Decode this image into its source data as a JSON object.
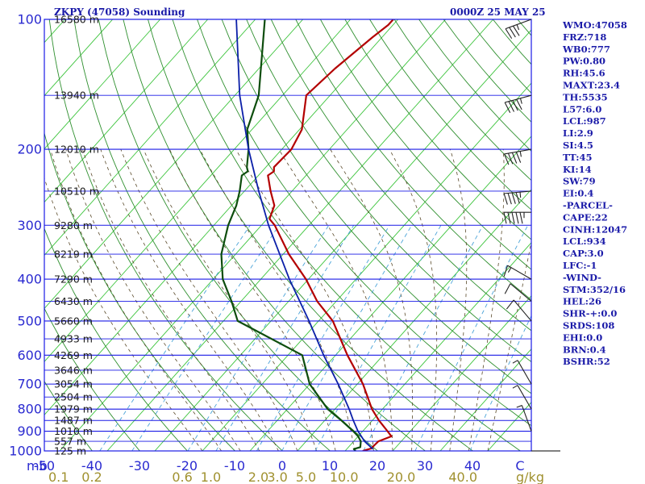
{
  "header": {
    "station_title": "ZKPY (47058) Sounding",
    "time_title": "0000Z 25 MAY 25"
  },
  "indices": [
    "WMO:47058",
    "FRZ:718",
    "WB0:777",
    "PW:0.80",
    "RH:45.6",
    "MAXT:23.4",
    "TH:5535",
    "L57:6.0",
    "LCL:987",
    "LI:2.9",
    "SI:4.5",
    "TT:45",
    "KI:14",
    "SW:79",
    "EI:0.4",
    "-PARCEL-",
    "CAPE:22",
    "CINH:12047",
    "LCL:934",
    "CAP:3.0",
    "LFC:-1",
    "-WIND-",
    "STM:352/16",
    "HEL:26",
    "SHR-+:0.0",
    "SRDS:108",
    "EHI:0.0",
    "BRN:0.4",
    "BSHR:52"
  ],
  "colors": {
    "isobar": "#1a1ae6",
    "frame": "#1a1ae6",
    "dry_adiabat": "#2e8f2e",
    "isotherm": "#3cc43c",
    "moist_adiabat": "#5a4a2a",
    "mixing_ratio": "#4aa3d8",
    "temperature": "#b30000",
    "dewpoint": "#0d4d0d",
    "parcel": "#0b1fa8",
    "wind_barb": "#222222"
  },
  "chart_data": {
    "type": "line",
    "title": "ZKPY (47058) Sounding",
    "y_unit": "mb",
    "y_scale": "log-pressure",
    "ylim": [
      1000,
      100
    ],
    "xlim_c": [
      -50,
      50
    ],
    "pressure_ticks": [
      {
        "value": 100,
        "label": "100"
      },
      {
        "value": 200,
        "label": "200"
      },
      {
        "value": 300,
        "label": "300"
      },
      {
        "value": 400,
        "label": "400"
      },
      {
        "value": 500,
        "label": "500"
      },
      {
        "value": 600,
        "label": "600"
      },
      {
        "value": 700,
        "label": "700"
      },
      {
        "value": 800,
        "label": "800"
      },
      {
        "value": 900,
        "label": "900"
      },
      {
        "value": 1000,
        "label": "1000"
      }
    ],
    "temperature_ticks": [
      {
        "value": -50,
        "label": "-50"
      },
      {
        "value": -40,
        "label": "-40"
      },
      {
        "value": -30,
        "label": "-30"
      },
      {
        "value": -20,
        "label": "-20"
      },
      {
        "value": -10,
        "label": "-10"
      },
      {
        "value": 0,
        "label": "0"
      },
      {
        "value": 10,
        "label": "10"
      },
      {
        "value": 20,
        "label": "20"
      },
      {
        "value": 30,
        "label": "30"
      },
      {
        "value": 40,
        "label": "40"
      },
      {
        "value": 50,
        "label": "C"
      }
    ],
    "axis_unit_left": "mb",
    "mixing_ratio_unit": "g/kg",
    "mixing_ratio_ticks": [
      {
        "value": 0.1,
        "label": "0.1"
      },
      {
        "value": 0.2,
        "label": "0.2"
      },
      {
        "value": 0.6,
        "label": "0.6"
      },
      {
        "value": 1.0,
        "label": "1.0"
      },
      {
        "value": 2.0,
        "label": "2.0"
      },
      {
        "value": 3.0,
        "label": "3.0"
      },
      {
        "value": 5.0,
        "label": "5.0"
      },
      {
        "value": 10.0,
        "label": "10.0"
      },
      {
        "value": 20.0,
        "label": "20.0"
      },
      {
        "value": 40.0,
        "label": "40.0"
      }
    ],
    "mixing_ratio_label_x_c": [
      -47,
      -40,
      -21,
      -15,
      -5,
      -1,
      5,
      13,
      25,
      38
    ],
    "height_labels": [
      {
        "p": 100,
        "label": "16580 m"
      },
      {
        "p": 150,
        "label": "13940 m"
      },
      {
        "p": 200,
        "label": "12010 m"
      },
      {
        "p": 250,
        "label": "10510 m"
      },
      {
        "p": 300,
        "label": "9280 m"
      },
      {
        "p": 350,
        "label": "8219 m"
      },
      {
        "p": 400,
        "label": "7290 m"
      },
      {
        "p": 450,
        "label": "6430 m"
      },
      {
        "p": 500,
        "label": "5660 m"
      },
      {
        "p": 550,
        "label": "4933 m"
      },
      {
        "p": 600,
        "label": "4269 m"
      },
      {
        "p": 650,
        "label": "3646 m"
      },
      {
        "p": 700,
        "label": "3054 m"
      },
      {
        "p": 750,
        "label": "2504 m"
      },
      {
        "p": 800,
        "label": "1979 m"
      },
      {
        "p": 850,
        "label": "1487 m"
      },
      {
        "p": 900,
        "label": "1010 m"
      },
      {
        "p": 950,
        "label": "557 m"
      },
      {
        "p": 1000,
        "label": "125 m"
      }
    ],
    "series": [
      {
        "role": "temperature",
        "points": [
          [
            1000,
            13.7
          ],
          [
            987,
            15
          ],
          [
            950,
            15.2
          ],
          [
            925,
            17
          ],
          [
            900,
            15.2
          ],
          [
            850,
            11.4
          ],
          [
            800,
            7.8
          ],
          [
            700,
            1.2
          ],
          [
            600,
            -7.5
          ],
          [
            500,
            -17
          ],
          [
            450,
            -24
          ],
          [
            400,
            -30.5
          ],
          [
            350,
            -38.8
          ],
          [
            300,
            -47.2
          ],
          [
            290,
            -49.5
          ],
          [
            270,
            -51
          ],
          [
            250,
            -54.5
          ],
          [
            230,
            -58
          ],
          [
            225,
            -57.5
          ],
          [
            220,
            -58.3
          ],
          [
            200,
            -58
          ],
          [
            180,
            -59.5
          ],
          [
            150,
            -65
          ],
          [
            130,
            -64
          ],
          [
            110,
            -62
          ],
          [
            103,
            -61
          ],
          [
            100,
            -61
          ]
        ]
      },
      {
        "role": "dewpoint",
        "points": [
          [
            1000,
            12.2
          ],
          [
            990,
            11.5
          ],
          [
            980,
            12.5
          ],
          [
            950,
            11.5
          ],
          [
            925,
            10
          ],
          [
            900,
            8
          ],
          [
            850,
            3.5
          ],
          [
            800,
            -1.5
          ],
          [
            700,
            -10
          ],
          [
            600,
            -17
          ],
          [
            500,
            -37
          ],
          [
            450,
            -42
          ],
          [
            400,
            -48
          ],
          [
            350,
            -53
          ],
          [
            300,
            -57
          ],
          [
            270,
            -59
          ],
          [
            250,
            -61
          ],
          [
            230,
            -63.5
          ],
          [
            225,
            -63
          ],
          [
            220,
            -64
          ],
          [
            200,
            -67
          ],
          [
            180,
            -71
          ],
          [
            150,
            -75
          ],
          [
            100,
            -88
          ]
        ]
      },
      {
        "role": "parcel",
        "points": [
          [
            990,
            15.5
          ],
          [
            950,
            12.3
          ],
          [
            900,
            9
          ],
          [
            850,
            6
          ],
          [
            800,
            3
          ],
          [
            700,
            -4
          ],
          [
            600,
            -12.5
          ],
          [
            500,
            -22
          ],
          [
            400,
            -34
          ],
          [
            300,
            -48.5
          ],
          [
            250,
            -57
          ],
          [
            200,
            -67
          ],
          [
            150,
            -79
          ],
          [
            100,
            -94
          ]
        ]
      }
    ],
    "wind_barbs": [
      {
        "p": 100,
        "dir": 250,
        "spd": 35
      },
      {
        "p": 150,
        "dir": 255,
        "spd": 45
      },
      {
        "p": 200,
        "dir": 260,
        "spd": 45
      },
      {
        "p": 250,
        "dir": 265,
        "spd": 45
      },
      {
        "p": 280,
        "dir": 270,
        "spd": 55
      },
      {
        "p": 400,
        "dir": 300,
        "spd": 15
      },
      {
        "p": 450,
        "dir": 310,
        "spd": 10
      },
      {
        "p": 500,
        "dir": 320,
        "spd": 10
      },
      {
        "p": 700,
        "dir": 330,
        "spd": 5
      },
      {
        "p": 800,
        "dir": 330,
        "spd": 5
      },
      {
        "p": 900,
        "dir": 340,
        "spd": 5
      },
      {
        "p": 1000,
        "dir": 0,
        "spd": 0
      }
    ]
  }
}
